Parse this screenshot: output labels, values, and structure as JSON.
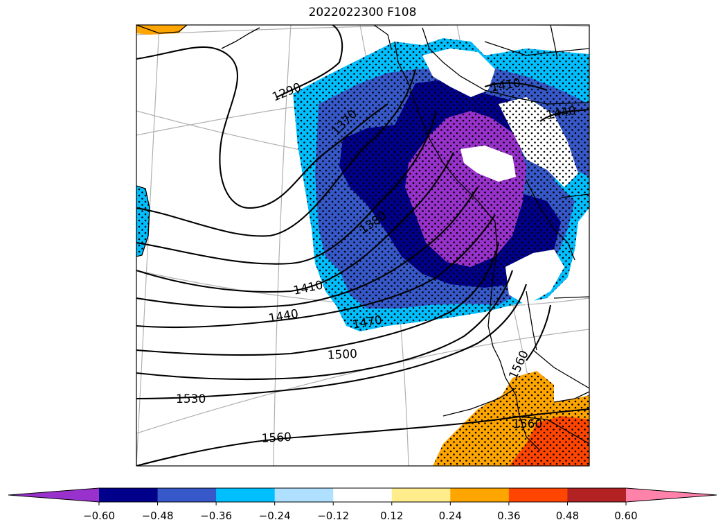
{
  "title": "2022022300 F108",
  "contour_labels": [
    "1290",
    "1370",
    "1380",
    "1410",
    "1440",
    "1470",
    "1500",
    "1530",
    "1560",
    "1410",
    "1440",
    "1560",
    "1560"
  ],
  "colorbar": {
    "colors": [
      "#9932CC",
      "#00008B",
      "#3658C8",
      "#00BFFF",
      "#B0E0FF",
      "#FFFFFF",
      "#FFEC8B",
      "#FFA500",
      "#FF4500",
      "#B22222",
      "#FF82AB"
    ],
    "ticks": [
      "−0.60",
      "−0.48",
      "−0.36",
      "−0.24",
      "−0.12",
      "0.12",
      "0.24",
      "0.36",
      "0.48",
      "0.60"
    ]
  },
  "colors": {
    "lightblue": "#00BFFF",
    "royal": "#3658C8",
    "navy": "#00008B",
    "purple": "#9932CC",
    "orange": "#FFA500",
    "redorange": "#FF4500"
  }
}
